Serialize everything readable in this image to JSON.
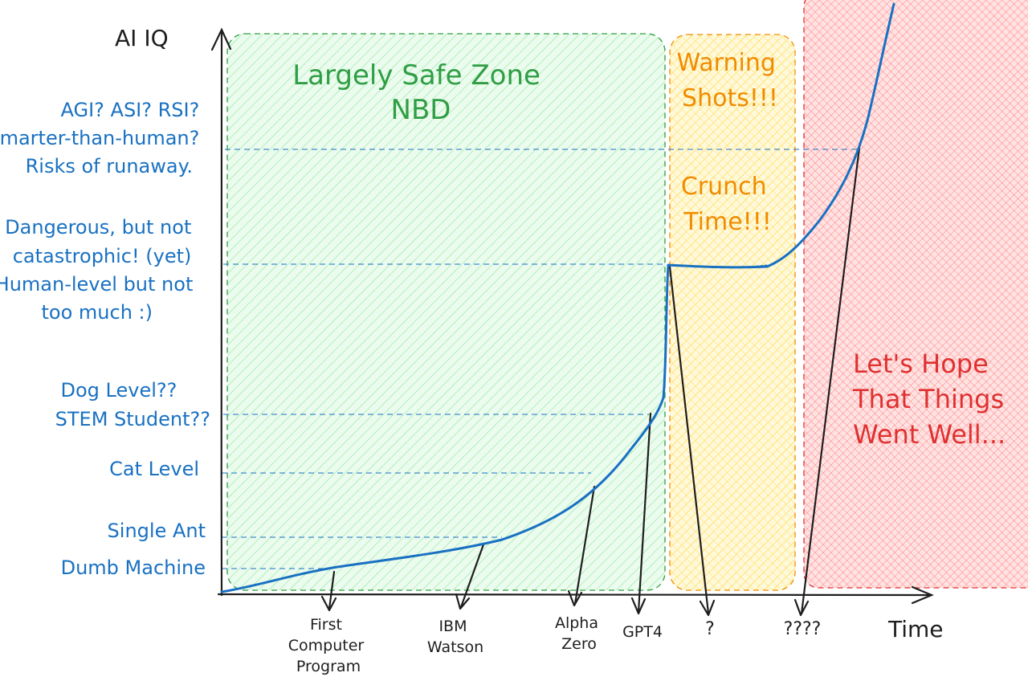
{
  "axes": {
    "y_title": "AI IQ",
    "x_title": "Time"
  },
  "y_levels": [
    {
      "lines": [
        "AGI? ASI? RSI?",
        "Smarter-than-human?",
        "Risks of runaway."
      ]
    },
    {
      "lines": [
        "Dangerous, but not",
        "catastrophic! (yet)",
        "Human-level but not",
        "too much :)"
      ]
    },
    {
      "lines": [
        "Dog Level??",
        "STEM Student??"
      ]
    },
    {
      "lines": [
        "Cat Level"
      ]
    },
    {
      "lines": [
        "Single Ant"
      ]
    },
    {
      "lines": [
        "Dumb Machine"
      ]
    }
  ],
  "zones": [
    {
      "lines": [
        "Largely Safe Zone",
        "NBD"
      ],
      "color": "#2f9e44",
      "fill": "#b2f2bb"
    },
    {
      "lines": [
        "Warning",
        "Shots!!!"
      ],
      "color": "#f08c00",
      "fill": "#ffec99"
    },
    {
      "lines": [
        "Crunch",
        "Time!!!"
      ],
      "color": "#f08c00"
    },
    {
      "lines": [
        "Let's Hope",
        "That Things",
        "Went Well..."
      ],
      "color": "#e03131",
      "fill": "#ffc9c9"
    }
  ],
  "milestones": [
    {
      "lines": [
        "First",
        "Computer",
        "Program"
      ]
    },
    {
      "lines": [
        "IBM",
        "Watson"
      ]
    },
    {
      "lines": [
        "Alpha",
        "Zero"
      ]
    },
    {
      "lines": [
        "GPT4"
      ]
    },
    {
      "lines": [
        "?"
      ]
    },
    {
      "lines": [
        "????"
      ]
    }
  ],
  "colors": {
    "curve": "#1971c2",
    "axis": "#1e1e1e",
    "guide": "#1971c2"
  }
}
